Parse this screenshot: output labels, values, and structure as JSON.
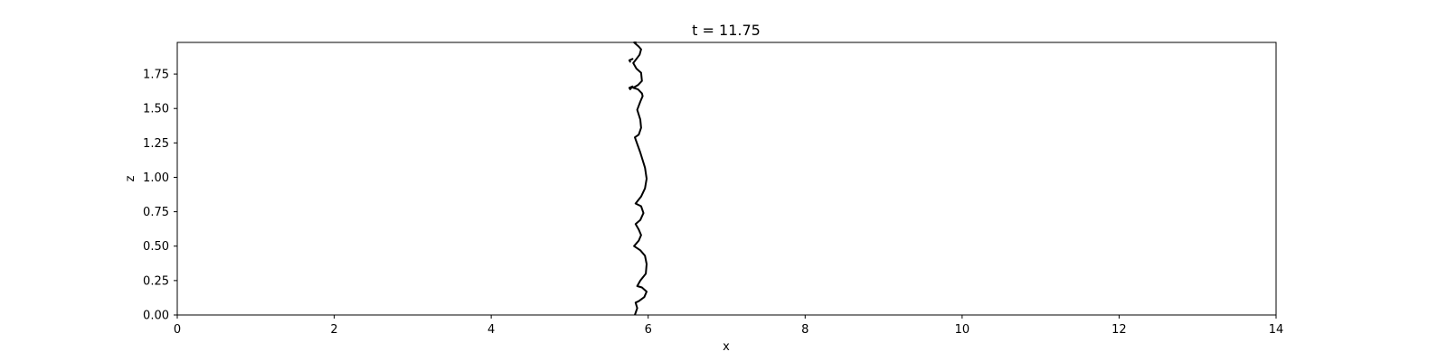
{
  "chart_data": {
    "type": "line",
    "title": "t = 11.75",
    "xlabel": "x",
    "ylabel": "z",
    "xlim": [
      0,
      14
    ],
    "ylim": [
      0,
      1.98
    ],
    "grid": false,
    "line_color": "#000000",
    "x_ticks": [
      {
        "value": 0,
        "label": "0"
      },
      {
        "value": 2,
        "label": "2"
      },
      {
        "value": 4,
        "label": "4"
      },
      {
        "value": 6,
        "label": "6"
      },
      {
        "value": 8,
        "label": "8"
      },
      {
        "value": 10,
        "label": "10"
      },
      {
        "value": 12,
        "label": "12"
      },
      {
        "value": 14,
        "label": "14"
      }
    ],
    "y_ticks": [
      {
        "value": 0.0,
        "label": "0.00"
      },
      {
        "value": 0.25,
        "label": "0.25"
      },
      {
        "value": 0.5,
        "label": "0.50"
      },
      {
        "value": 0.75,
        "label": "0.75"
      },
      {
        "value": 1.0,
        "label": "1.00"
      },
      {
        "value": 1.25,
        "label": "1.25"
      },
      {
        "value": 1.5,
        "label": "1.50"
      },
      {
        "value": 1.75,
        "label": "1.75"
      }
    ],
    "series": [
      {
        "x": [
          5.83,
          5.86,
          5.84,
          5.88,
          5.95,
          5.98,
          5.92,
          5.86,
          5.9,
          5.97,
          5.98,
          5.96,
          5.9,
          5.82,
          5.88,
          5.91,
          5.88,
          5.84,
          5.9,
          5.94,
          5.91,
          5.84,
          5.91,
          5.96,
          5.98,
          5.96,
          5.9,
          5.83,
          5.88,
          5.91,
          5.9,
          5.86,
          5.9,
          5.93,
          5.92,
          5.87,
          5.81,
          5.87,
          5.92,
          5.91,
          5.85,
          5.81,
          5.85,
          5.89,
          5.91,
          5.88,
          5.82,
          5.85
        ],
        "y": [
          0.0,
          0.05,
          0.09,
          0.1,
          0.13,
          0.17,
          0.2,
          0.21,
          0.25,
          0.3,
          0.37,
          0.43,
          0.47,
          0.5,
          0.54,
          0.58,
          0.62,
          0.66,
          0.69,
          0.74,
          0.79,
          0.81,
          0.86,
          0.92,
          0.99,
          1.07,
          1.18,
          1.29,
          1.31,
          1.36,
          1.42,
          1.49,
          1.55,
          1.59,
          1.61,
          1.64,
          1.65,
          1.67,
          1.7,
          1.76,
          1.79,
          1.83,
          1.86,
          1.89,
          1.93,
          1.95,
          1.98,
          1.98
        ]
      },
      {
        "x": [
          5.76,
          5.8,
          5.76,
          5.77
        ],
        "y": [
          1.85,
          1.86,
          1.85,
          1.84
        ]
      },
      {
        "x": [
          5.76,
          5.8,
          5.77,
          5.76
        ],
        "y": [
          1.65,
          1.66,
          1.64,
          1.65
        ]
      }
    ]
  }
}
